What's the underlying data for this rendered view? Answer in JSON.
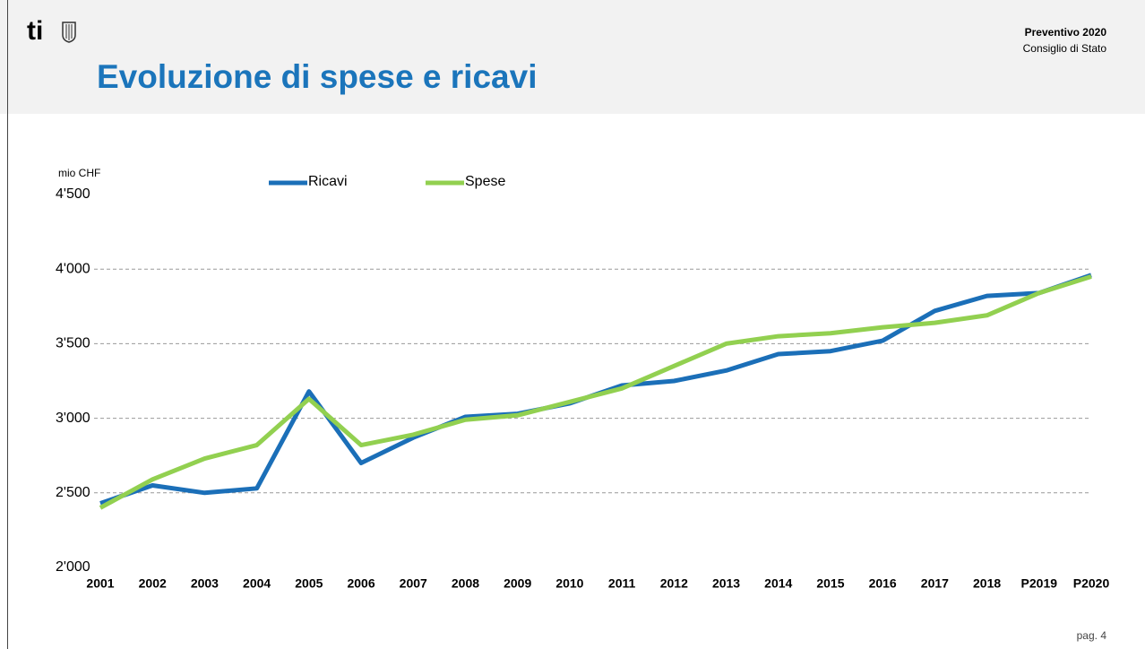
{
  "header": {
    "logo": "ti",
    "title": "Evoluzione di spese e ricavi",
    "report": "Preventivo 2020",
    "author": "Consiglio di Stato"
  },
  "footer": {
    "page": "pag. 4"
  },
  "chart_data": {
    "type": "line",
    "y_label": "mio CHF",
    "categories": [
      "2001",
      "2002",
      "2003",
      "2004",
      "2005",
      "2006",
      "2007",
      "2008",
      "2009",
      "2010",
      "2011",
      "2012",
      "2013",
      "2014",
      "2015",
      "2016",
      "2017",
      "2018",
      "P2019",
      "P2020"
    ],
    "series": [
      {
        "name": "Ricavi",
        "color": "#1b6fb8",
        "values": [
          2430,
          2550,
          2500,
          2530,
          3180,
          2700,
          2870,
          3010,
          3030,
          3100,
          3220,
          3250,
          3320,
          3430,
          3450,
          3520,
          3720,
          3820,
          3840,
          3960
        ]
      },
      {
        "name": "Spese",
        "color": "#92d050",
        "values": [
          2400,
          2590,
          2730,
          2820,
          3130,
          2820,
          2890,
          2990,
          3020,
          3110,
          3200,
          3350,
          3500,
          3550,
          3570,
          3610,
          3640,
          3690,
          3840,
          3950
        ]
      }
    ],
    "ylim": [
      2000,
      4500
    ],
    "yticks": [
      {
        "value": 2000,
        "label": "2'000"
      },
      {
        "value": 2500,
        "label": "2'500"
      },
      {
        "value": 3000,
        "label": "3'000"
      },
      {
        "value": 3500,
        "label": "3'500"
      },
      {
        "value": 4000,
        "label": "4'000"
      },
      {
        "value": 4500,
        "label": "4'500"
      }
    ],
    "grid": true,
    "legend": "top"
  }
}
